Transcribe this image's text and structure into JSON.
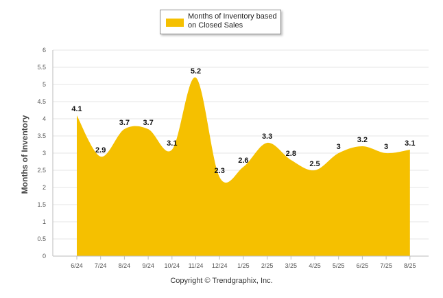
{
  "chart_data": {
    "type": "area",
    "categories": [
      "6/24",
      "7/24",
      "8/24",
      "9/24",
      "10/24",
      "11/24",
      "12/24",
      "1/25",
      "2/25",
      "3/25",
      "4/25",
      "5/25",
      "6/25",
      "7/25",
      "8/25"
    ],
    "series": [
      {
        "name": "Months of Inventory based on Closed Sales",
        "values": [
          4.1,
          2.9,
          3.7,
          3.7,
          3.1,
          5.2,
          2.3,
          2.6,
          3.3,
          2.8,
          2.5,
          3,
          3.2,
          3,
          3.1
        ],
        "labels": [
          "4.1",
          "2.9",
          "3.7",
          "3.7",
          "3.1",
          "5.2",
          "2.3",
          "2.6",
          "3.3",
          "2.8",
          "2.5",
          "3",
          "3.2",
          "3",
          "3.1"
        ]
      }
    ],
    "ylabel": "Months of Inventory",
    "ylim": [
      0,
      6
    ],
    "yticks": [
      "0",
      "0.5",
      "1",
      "1.5",
      "2",
      "2.5",
      "3",
      "3.5",
      "4",
      "4.5",
      "5",
      "5.5",
      "6"
    ],
    "grid": true,
    "legend_position": "top-center",
    "colors": {
      "fill": "#F5C000",
      "grid": "#e6e6e6",
      "axis": "#bbbbbb"
    }
  },
  "legend": {
    "label": "Months of Inventory based on Closed Sales"
  },
  "footer": {
    "copyright": "Copyright © Trendgraphix, Inc."
  }
}
